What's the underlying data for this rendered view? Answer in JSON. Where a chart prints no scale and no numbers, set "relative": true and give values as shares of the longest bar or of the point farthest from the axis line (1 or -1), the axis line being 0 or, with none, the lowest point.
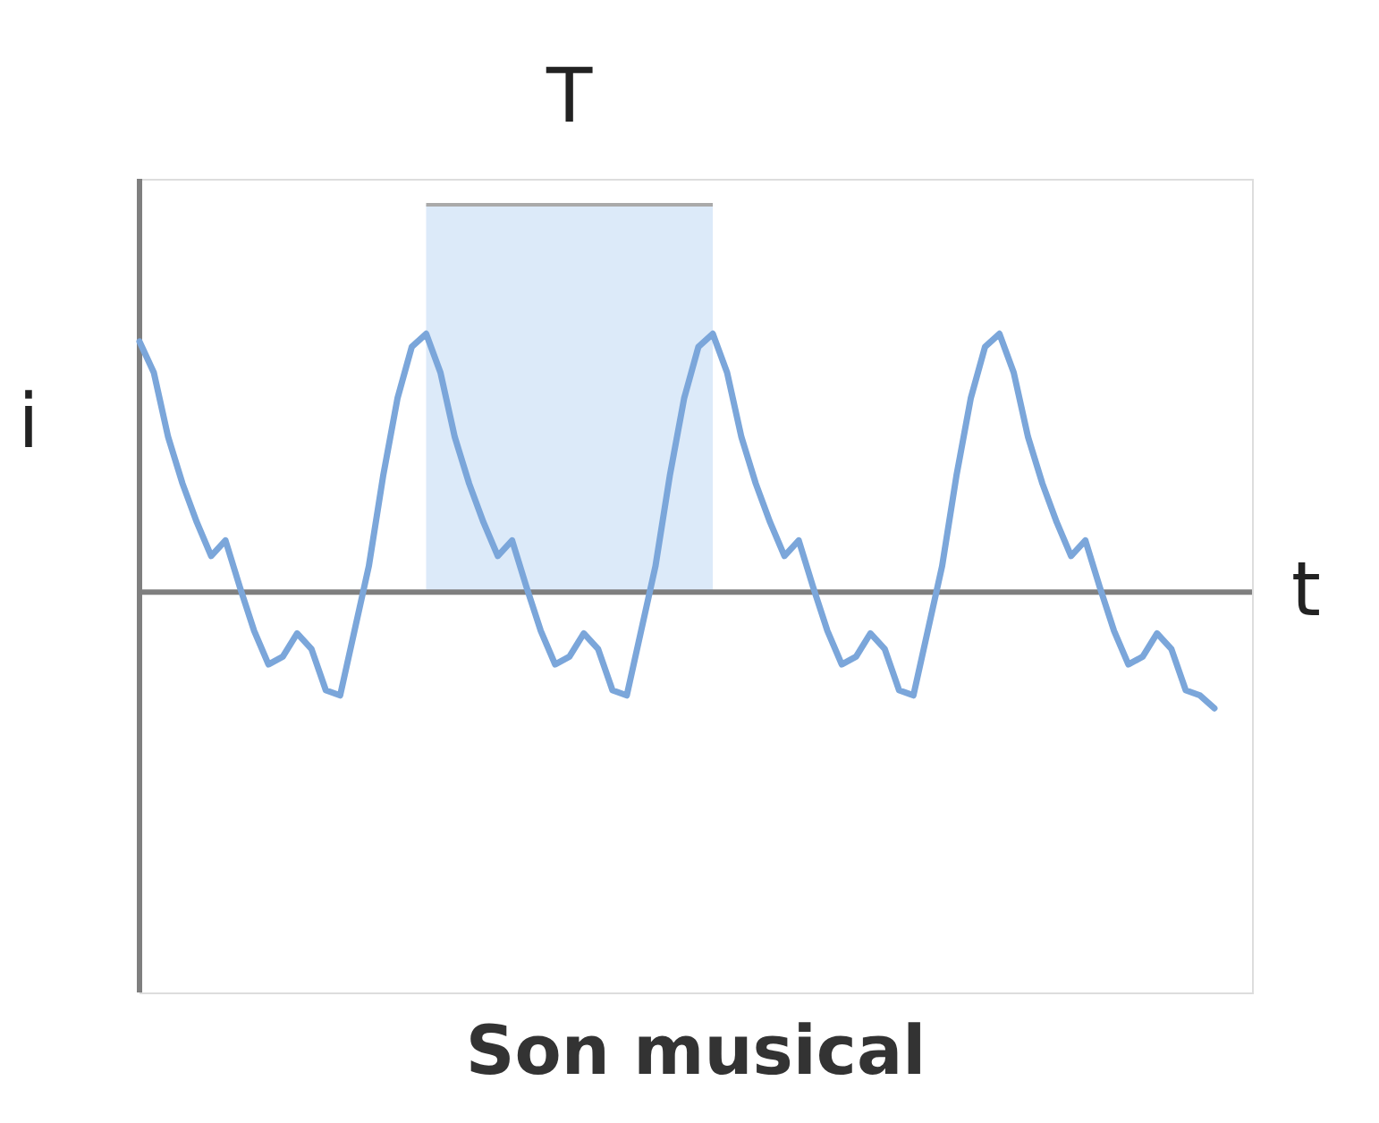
{
  "chart_data": {
    "type": "line",
    "relative": true,
    "title": "Son musical",
    "xlabel": "t",
    "ylabel": "i",
    "annotations": [
      "T"
    ],
    "categories": [
      null,
      null,
      null,
      null,
      null,
      null,
      null,
      null,
      null,
      null,
      null,
      null,
      null,
      null,
      null,
      null,
      null,
      null,
      null,
      null,
      null,
      null,
      null,
      null,
      null,
      null,
      null,
      null,
      null,
      null,
      null,
      null,
      null,
      null,
      null,
      null,
      null,
      null,
      null,
      null,
      null,
      null,
      null,
      null,
      null,
      null,
      null,
      null,
      null,
      null,
      null,
      null,
      null,
      null,
      null,
      null,
      null,
      null,
      null,
      null,
      null,
      null,
      null,
      null,
      null,
      null,
      null,
      null,
      null,
      null,
      null,
      null,
      null,
      null,
      null,
      null
    ],
    "series": [
      {
        "color": "#7ba6da",
        "values": [
          0.97,
          0.85,
          0.6,
          0.42,
          0.27,
          0.14,
          0.2,
          0.02,
          -0.15,
          -0.28,
          -0.25,
          -0.16,
          -0.22,
          -0.38,
          -0.4,
          -0.15,
          0.1,
          0.45,
          0.75,
          0.95,
          1.0,
          0.85,
          0.6,
          0.42,
          0.27,
          0.14,
          0.2,
          0.02,
          -0.15,
          -0.28,
          -0.25,
          -0.16,
          -0.22,
          -0.38,
          -0.4,
          -0.15,
          0.1,
          0.45,
          0.75,
          0.95,
          1.0,
          0.85,
          0.6,
          0.42,
          0.27,
          0.14,
          0.2,
          0.02,
          -0.15,
          -0.28,
          -0.25,
          -0.16,
          -0.22,
          -0.38,
          -0.4,
          -0.15,
          0.1,
          0.45,
          0.75,
          0.95,
          1.0,
          0.85,
          0.6,
          0.42,
          0.27,
          0.14,
          0.2,
          0.02,
          -0.15,
          -0.28,
          -0.25,
          -0.16,
          -0.22,
          -0.38,
          -0.4,
          -0.45
        ]
      }
    ],
    "marker": "none",
    "line_style": "solid"
  }
}
